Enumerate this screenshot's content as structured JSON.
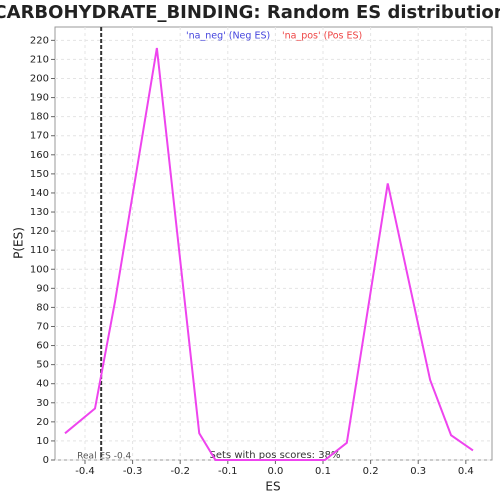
{
  "chart_data": {
    "type": "line",
    "title": "CARBOHYDRATE_BINDING: Random ES distribution",
    "xlabel": "ES",
    "ylabel": "P(ES)",
    "legend": [
      {
        "name": "'na_neg' (Neg ES)",
        "color": "#4444dd"
      },
      {
        "name": "'na_pos' (Pos ES)",
        "color": "#ee4444"
      }
    ],
    "annotations": {
      "real_es": "Real ES -0.4",
      "real_es_x": -0.366,
      "pos_scores": "Sets with pos scores: 38%"
    },
    "x": [
      -0.442,
      -0.379,
      -0.337,
      -0.249,
      -0.16,
      -0.126,
      0.104,
      0.15,
      0.236,
      0.325,
      0.369,
      0.415
    ],
    "series": [
      {
        "name": "ES",
        "color": "#ee44ee",
        "values": [
          14,
          27,
          83,
          216,
          14,
          0,
          0,
          9,
          145,
          42,
          13,
          5
        ]
      }
    ],
    "xlim": [
      -0.463,
      0.455
    ],
    "ylim": [
      0,
      227
    ],
    "xticks": [
      -0.4,
      -0.3,
      -0.2,
      -0.1,
      {
        "value": 0,
        "label": "0.0"
      },
      0.1,
      0.2,
      0.3,
      0.4
    ],
    "yticks": [
      0,
      10,
      20,
      30,
      40,
      50,
      60,
      70,
      80,
      90,
      100,
      110,
      120,
      130,
      140,
      150,
      160,
      170,
      180,
      190,
      200,
      210,
      220
    ],
    "grid": true
  }
}
